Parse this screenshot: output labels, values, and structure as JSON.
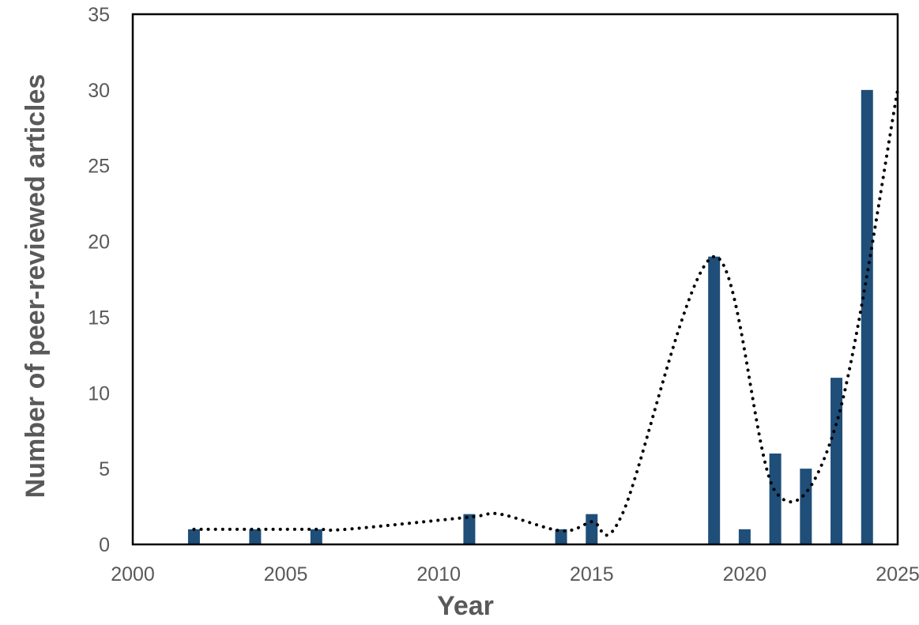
{
  "chart_data": {
    "type": "bar",
    "title": "",
    "xlabel": "Year",
    "ylabel": "Number of peer-reviewed articles",
    "xlim": [
      2000,
      2025
    ],
    "ylim": [
      0,
      35
    ],
    "x_ticks": [
      2000,
      2005,
      2010,
      2015,
      2020,
      2025
    ],
    "y_ticks": [
      0,
      5,
      10,
      15,
      20,
      25,
      30,
      35
    ],
    "grid": false,
    "legend": "none",
    "bar_color": "#1F4E79",
    "trendline_color": "#000000",
    "trendline_style": "dotted",
    "series": [
      {
        "type": "bar",
        "x": [
          2002,
          2004,
          2006,
          2011,
          2014,
          2015,
          2019,
          2020,
          2021,
          2022,
          2023,
          2024
        ],
        "values": [
          1,
          1,
          1,
          2,
          1,
          2,
          19,
          1,
          6,
          5,
          11,
          30
        ]
      },
      {
        "type": "line",
        "style": "dotted",
        "x": [
          2002,
          2004,
          2006,
          2007,
          2011,
          2012,
          2014,
          2015,
          2016,
          2019,
          2021,
          2023,
          2025
        ],
        "values": [
          1,
          1,
          1,
          1,
          1.8,
          2,
          0.9,
          1.5,
          2,
          19,
          3.5,
          8,
          30
        ]
      }
    ]
  }
}
